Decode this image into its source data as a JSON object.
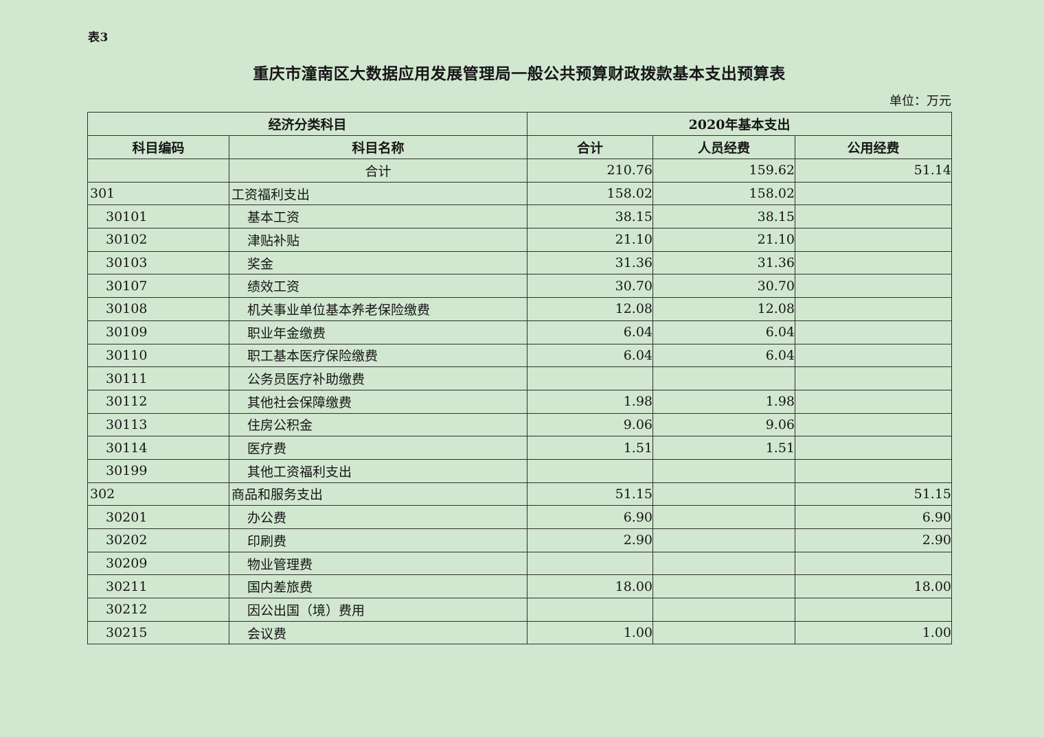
{
  "page": {
    "table_label": "表3",
    "title": "重庆市潼南区大数据应用发展管理局一般公共预算财政拨款基本支出预算表",
    "unit_note": "单位：万元"
  },
  "colors": {
    "page_background": "#d2e7d0",
    "border": "#2e2e2e",
    "text": "#161616"
  },
  "table": {
    "header": {
      "group1": "经济分类科目",
      "group2": "2020年基本支出",
      "columns": [
        "科目编码",
        "科目名称",
        "合计",
        "人员经费",
        "公用经费"
      ]
    },
    "rows": [
      {
        "level": "total",
        "code": "",
        "name": "合计",
        "total": "210.76",
        "personnel": "159.62",
        "public": "51.14"
      },
      {
        "level": "category",
        "code": "301",
        "name": "工资福利支出",
        "total": "158.02",
        "personnel": "158.02",
        "public": ""
      },
      {
        "level": "item",
        "code": "30101",
        "name": "基本工资",
        "total": "38.15",
        "personnel": "38.15",
        "public": ""
      },
      {
        "level": "item",
        "code": "30102",
        "name": "津贴补贴",
        "total": "21.10",
        "personnel": "21.10",
        "public": ""
      },
      {
        "level": "item",
        "code": "30103",
        "name": "奖金",
        "total": "31.36",
        "personnel": "31.36",
        "public": ""
      },
      {
        "level": "item",
        "code": "30107",
        "name": "绩效工资",
        "total": "30.70",
        "personnel": "30.70",
        "public": ""
      },
      {
        "level": "item",
        "code": "30108",
        "name": "机关事业单位基本养老保险缴费",
        "total": "12.08",
        "personnel": "12.08",
        "public": ""
      },
      {
        "level": "item",
        "code": "30109",
        "name": "职业年金缴费",
        "total": "6.04",
        "personnel": "6.04",
        "public": ""
      },
      {
        "level": "item",
        "code": "30110",
        "name": "职工基本医疗保险缴费",
        "total": "6.04",
        "personnel": "6.04",
        "public": ""
      },
      {
        "level": "item",
        "code": "30111",
        "name": "公务员医疗补助缴费",
        "total": "",
        "personnel": "",
        "public": ""
      },
      {
        "level": "item",
        "code": "30112",
        "name": "其他社会保障缴费",
        "total": "1.98",
        "personnel": "1.98",
        "public": ""
      },
      {
        "level": "item",
        "code": "30113",
        "name": "住房公积金",
        "total": "9.06",
        "personnel": "9.06",
        "public": ""
      },
      {
        "level": "item",
        "code": "30114",
        "name": "医疗费",
        "total": "1.51",
        "personnel": "1.51",
        "public": ""
      },
      {
        "level": "item",
        "code": "30199",
        "name": "其他工资福利支出",
        "total": "",
        "personnel": "",
        "public": ""
      },
      {
        "level": "category",
        "code": "302",
        "name": "商品和服务支出",
        "total": "51.15",
        "personnel": "",
        "public": "51.15"
      },
      {
        "level": "item",
        "code": "30201",
        "name": "办公费",
        "total": "6.90",
        "personnel": "",
        "public": "6.90"
      },
      {
        "level": "item",
        "code": "30202",
        "name": "印刷费",
        "total": "2.90",
        "personnel": "",
        "public": "2.90"
      },
      {
        "level": "item",
        "code": "30209",
        "name": "物业管理费",
        "total": "",
        "personnel": "",
        "public": ""
      },
      {
        "level": "item",
        "code": "30211",
        "name": "国内差旅费",
        "total": "18.00",
        "personnel": "",
        "public": "18.00"
      },
      {
        "level": "item",
        "code": "30212",
        "name": "因公出国（境）费用",
        "total": "",
        "personnel": "",
        "public": ""
      },
      {
        "level": "item",
        "code": "30215",
        "name": "会议费",
        "total": "1.00",
        "personnel": "",
        "public": "1.00"
      }
    ]
  }
}
